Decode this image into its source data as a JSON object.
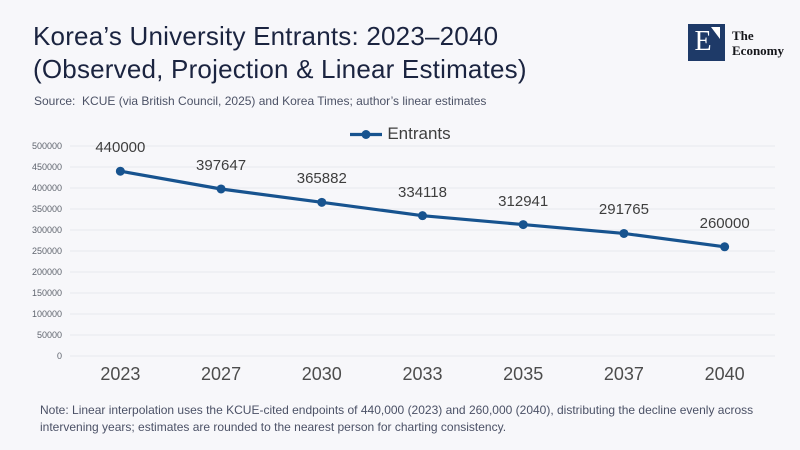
{
  "header": {
    "title_line1": "Korea’s University Entrants: 2023–2040",
    "title_line2": "(Observed, Projection & Linear Estimates)",
    "source": "Source:  KCUE (via British Council, 2025) and Korea Times; author’s linear estimates"
  },
  "logo": {
    "mark_letter": "E",
    "name_line1": "The",
    "name_line2": "Economy"
  },
  "chart_data": {
    "type": "line",
    "title": "Korea’s University Entrants: 2023–2040 (Observed, Projection & Linear Estimates)",
    "categories": [
      "2023",
      "2027",
      "2030",
      "2033",
      "2035",
      "2037",
      "2040"
    ],
    "series": [
      {
        "name": "Entrants",
        "values": [
          440000,
          397647,
          365882,
          334118,
          312941,
          291765,
          260000
        ],
        "color": "#17538f"
      }
    ],
    "data_labels": [
      "440000",
      "397647",
      "365882",
      "334118",
      "312941",
      "291765",
      "260000"
    ],
    "ylim": [
      0,
      500000
    ],
    "yticks": [
      0,
      50000,
      100000,
      150000,
      200000,
      250000,
      300000,
      350000,
      400000,
      450000,
      500000
    ],
    "grid": true,
    "legend_position": "top-center",
    "xlabel": "",
    "ylabel": ""
  },
  "note": {
    "line1": "Note: Linear interpolation uses the KCUE-cited endpoints of 440,000 (2023) and 260,000 (2040), distributing the decline evenly across",
    "line2": "intervening years; estimates are rounded to the nearest person for charting consistency."
  },
  "colors": {
    "background": "#f7f7fa",
    "accent_line": "#17538f",
    "grid": "#e7e8ee",
    "title": "#1b2440",
    "logo_blue": "#1e3a68"
  }
}
